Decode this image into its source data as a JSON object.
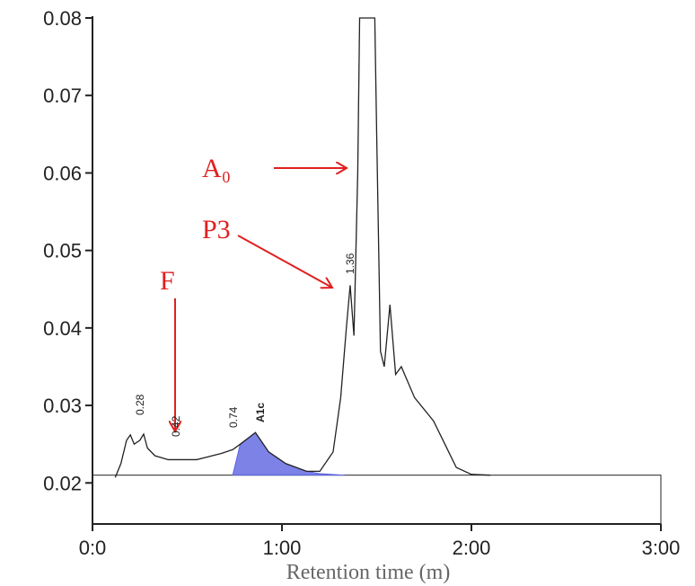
{
  "chart_data": {
    "type": "line",
    "x_label": "Retention time (m)",
    "xlim": [
      0,
      3
    ],
    "xticks": [
      {
        "value": 0,
        "label": "0:0"
      },
      {
        "value": 1,
        "label": "1:00"
      },
      {
        "value": 2,
        "label": "2:00"
      },
      {
        "value": 3,
        "label": "3:00"
      }
    ],
    "ylim": [
      0.0147,
      0.08
    ],
    "yticks": [
      0.02,
      0.03,
      0.04,
      0.05,
      0.06,
      0.07,
      0.08
    ],
    "baseline": 0.021,
    "series": [
      {
        "color": "#222222",
        "x": [
          0.12,
          0.15,
          0.18,
          0.2,
          0.22,
          0.25,
          0.27,
          0.29,
          0.33,
          0.4,
          0.55,
          0.68,
          0.74,
          0.78,
          0.86,
          0.93,
          1.02,
          1.13,
          1.2,
          1.27,
          1.31,
          1.34,
          1.36,
          1.38,
          1.4,
          1.41,
          1.49,
          1.5,
          1.52,
          1.54,
          1.57,
          1.6,
          1.63,
          1.7,
          1.8,
          1.86,
          1.92,
          2.0,
          2.1
        ],
        "values": [
          0.0207,
          0.0225,
          0.0255,
          0.0262,
          0.025,
          0.0255,
          0.0263,
          0.0245,
          0.0235,
          0.023,
          0.023,
          0.0238,
          0.0243,
          0.025,
          0.0265,
          0.024,
          0.0225,
          0.0215,
          0.0215,
          0.024,
          0.031,
          0.04,
          0.0455,
          0.039,
          0.06,
          0.08,
          0.08,
          0.065,
          0.037,
          0.035,
          0.043,
          0.034,
          0.035,
          0.031,
          0.028,
          0.025,
          0.022,
          0.0211,
          0.021
        ]
      },
      {
        "name": "A1c",
        "color": "#5b63e0",
        "x": [
          0.74,
          0.78,
          0.86,
          0.93,
          1.02,
          1.13,
          1.2,
          1.33
        ],
        "values": [
          0.021,
          0.025,
          0.0265,
          0.024,
          0.0225,
          0.0215,
          0.0212,
          0.021
        ]
      }
    ],
    "peak_labels": [
      "0.28",
      "0.42",
      "0.74",
      "1.36"
    ],
    "annotations": [
      "A₀",
      "P3",
      "F"
    ]
  }
}
